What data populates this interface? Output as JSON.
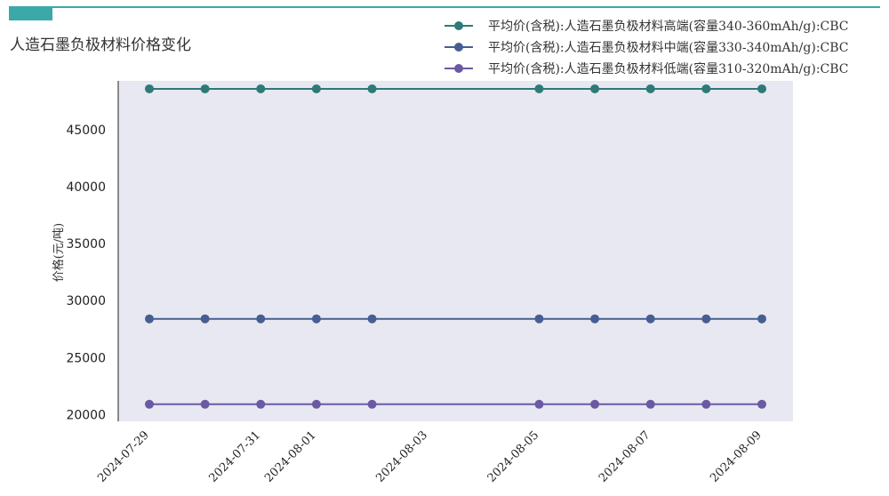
{
  "header": {
    "title": "人造石墨负极材料价格变化",
    "accent_color": "#3aa9a7",
    "rule_color": "#3aa9a7"
  },
  "chart_data": {
    "type": "line",
    "title": "人造石墨负极材料价格变化",
    "xlabel": "",
    "ylabel": "价格(元/吨)",
    "x": [
      "2024-07-29",
      "2024-07-30",
      "2024-07-31",
      "2024-08-01",
      "2024-08-02",
      "2024-08-05",
      "2024-08-06",
      "2024-08-07",
      "2024-08-08",
      "2024-08-09"
    ],
    "x_tick_labels": [
      "2024-07-29",
      "2024-07-31",
      "2024-08-01",
      "2024-08-03",
      "2024-08-05",
      "2024-08-07",
      "2024-08-09"
    ],
    "y_ticks": [
      20000,
      25000,
      30000,
      35000,
      40000,
      45000
    ],
    "ylim": [
      19400,
      49300
    ],
    "xlim": [
      "2024-07-28",
      "2024-08-09"
    ],
    "plot_background": "#e8e8f2",
    "legend_position": "top-right",
    "series": [
      {
        "name": "平均价(含税):人造石墨负极材料高端(容量340-360mAh/g):CBC",
        "color": "#2d7a78",
        "values": [
          48600,
          48600,
          48600,
          48600,
          48600,
          48600,
          48600,
          48600,
          48600,
          48600
        ]
      },
      {
        "name": "平均价(含税):人造石墨负极材料中端(容量330-340mAh/g):CBC",
        "color": "#475e93",
        "values": [
          28400,
          28400,
          28400,
          28400,
          28400,
          28400,
          28400,
          28400,
          28400,
          28400
        ]
      },
      {
        "name": "平均价(含税):人造石墨负极材料低端(容量310-320mAh/g):CBC",
        "color": "#6b59a3",
        "values": [
          20900,
          20900,
          20900,
          20900,
          20900,
          20900,
          20900,
          20900,
          20900,
          20900
        ]
      }
    ]
  }
}
